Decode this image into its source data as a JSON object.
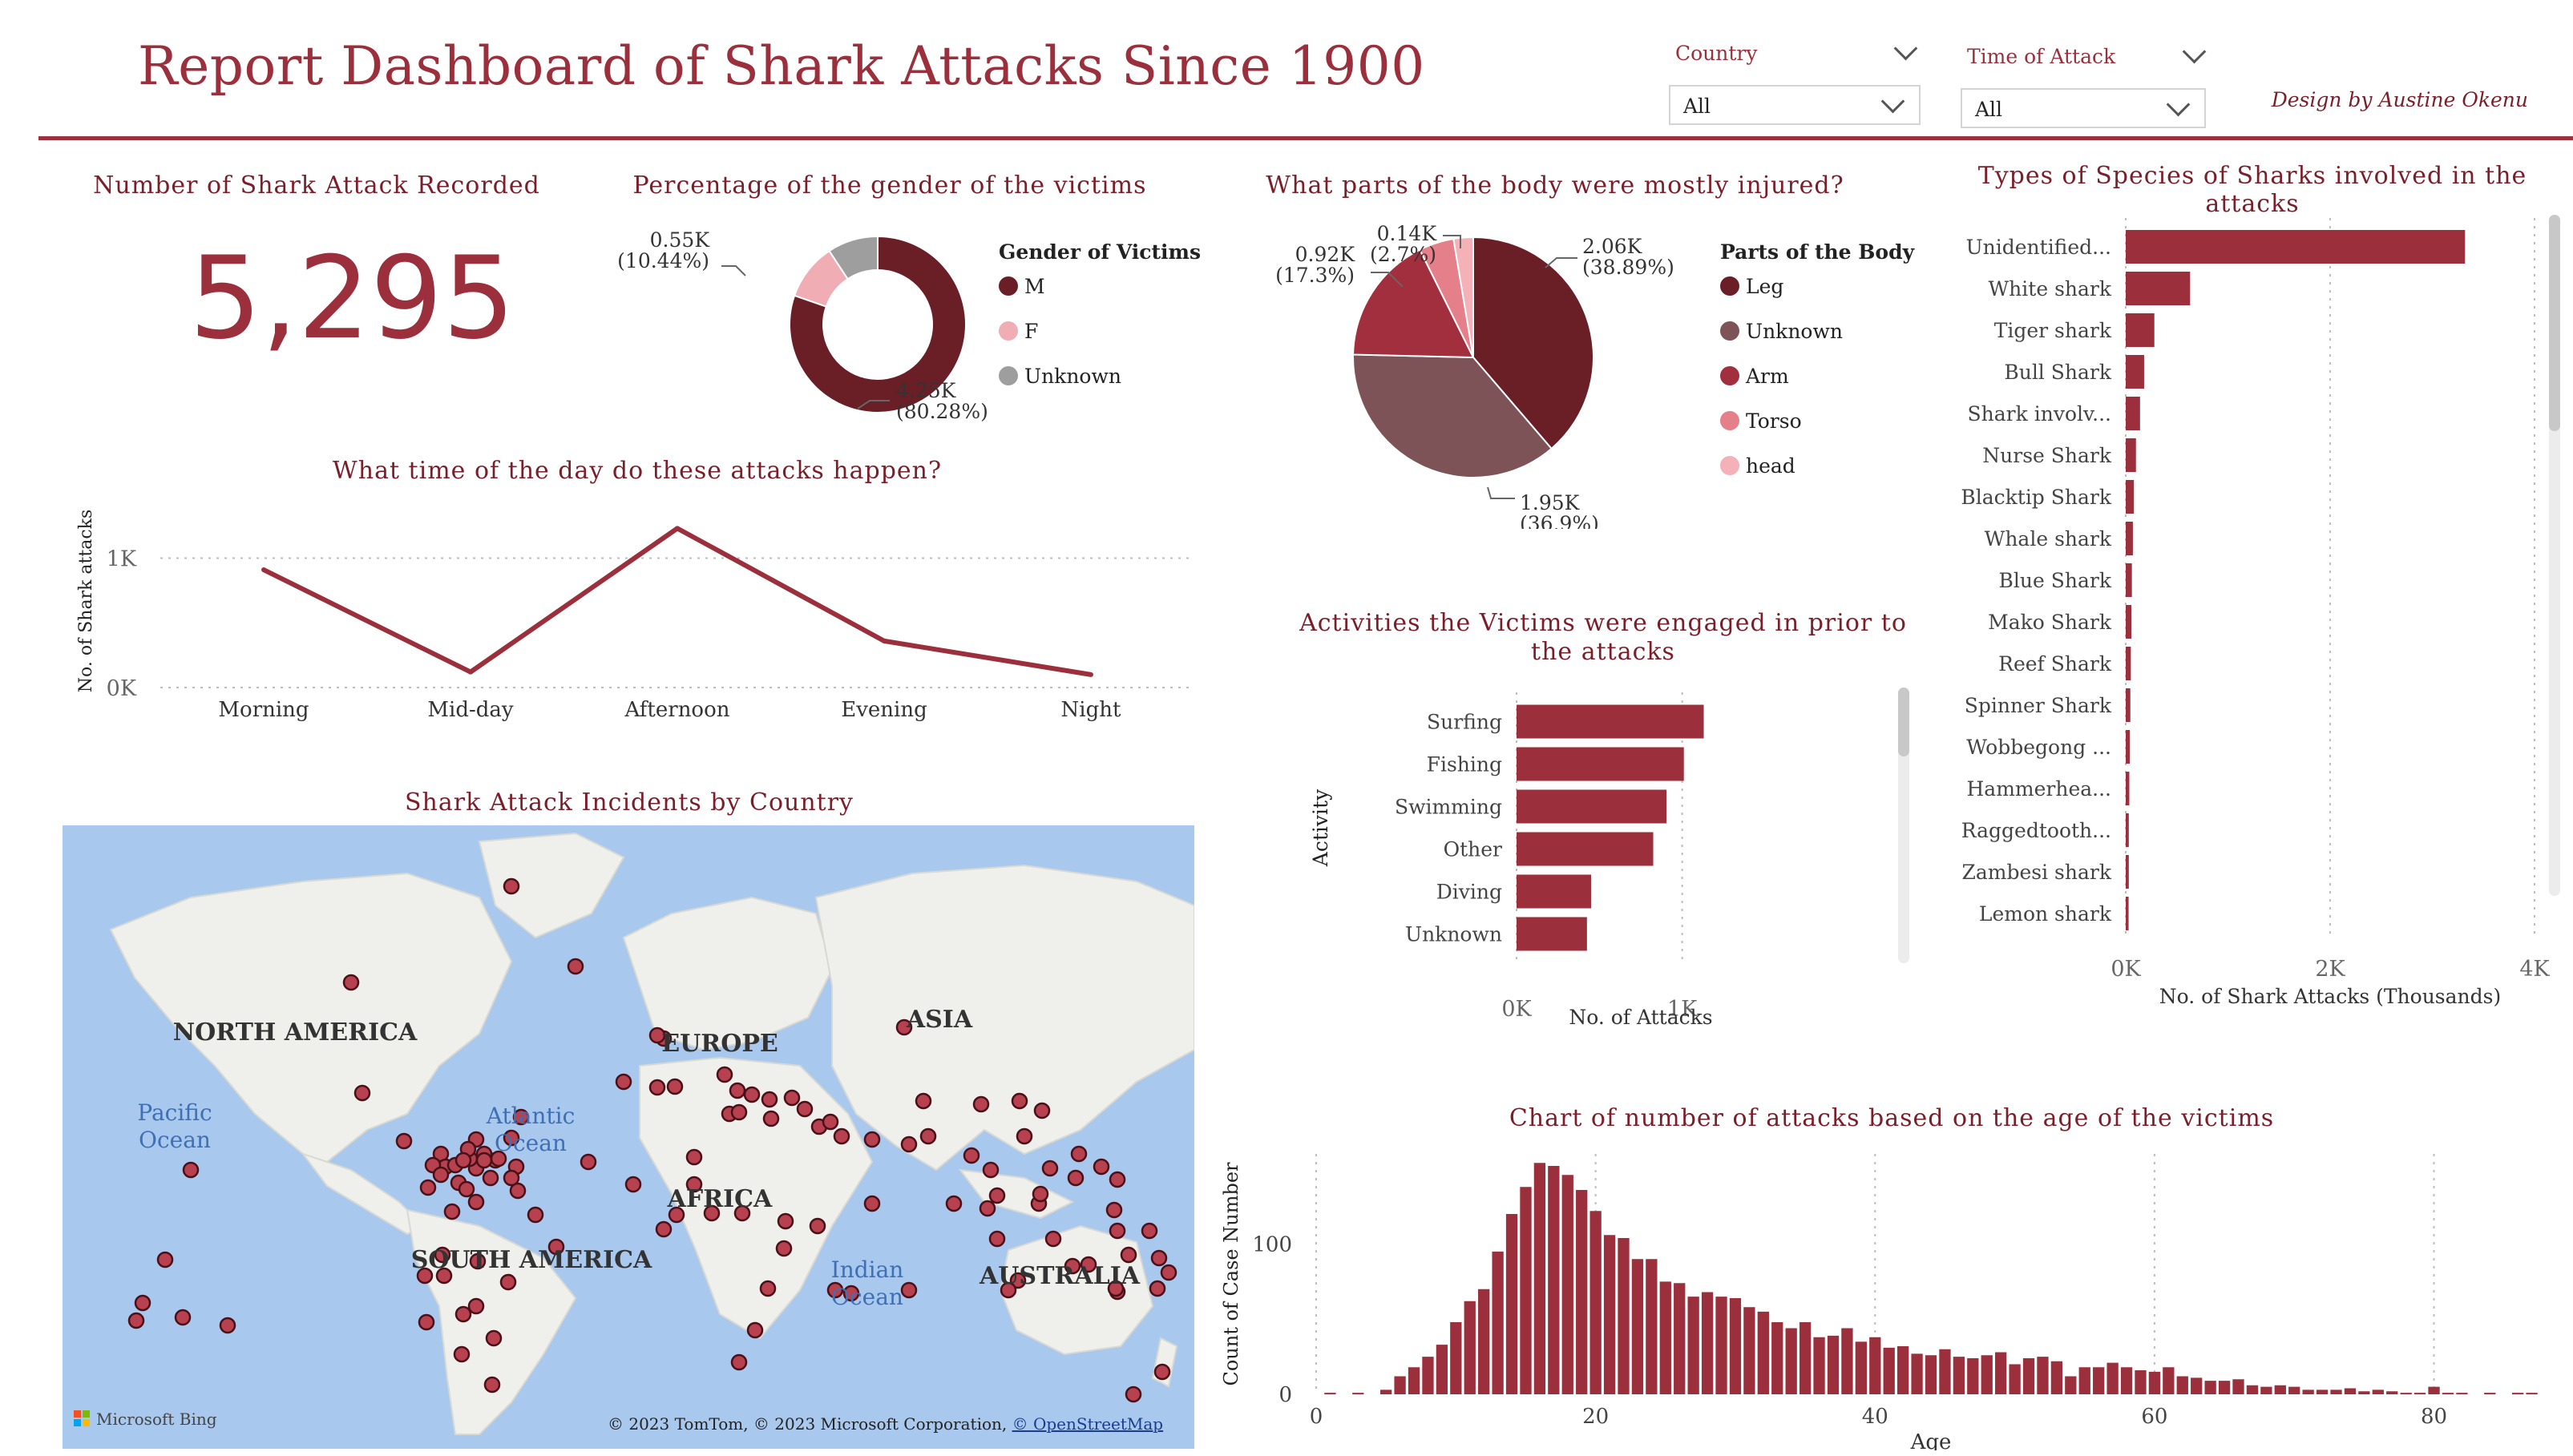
{
  "header": {
    "title": "Report Dashboard of Shark Attacks Since 1900",
    "design_credit": "Design by Austine Okenu"
  },
  "filters": {
    "country": {
      "label": "Country",
      "value": "All"
    },
    "time_of_attack": {
      "label": "Time of Attack",
      "value": "All"
    }
  },
  "kpi": {
    "title": "Number of Shark Attack Recorded",
    "value": "5,295"
  },
  "icons": {
    "slicer_chevron": "chevron-down-icon",
    "map_logo": "microsoft-bing-logo",
    "map_marker": "circle-marker-icon"
  },
  "colors": {
    "accent": "#9b2f3c",
    "title_text": "#7a1f2a",
    "grid": "#bdbdbd",
    "map_water": "#a9c8ee",
    "map_land": "#efefec",
    "marker": "#b7414e"
  },
  "map": {
    "title": "Shark Attack Incidents by Country",
    "labels": {
      "north_america": "NORTH AMERICA",
      "south_america": "SOUTH AMERICA",
      "europe": "EUROPE",
      "africa": "AFRICA",
      "asia": "ASIA",
      "australia": "AUSTRALIA",
      "pacific": "Pacific Ocean",
      "atlantic": "Atlantic Ocean",
      "indian": "Indian Ocean"
    },
    "logo_text": "Microsoft Bing",
    "copyright": "© 2023 TomTom, © 2023 Microsoft Corporation,",
    "osm_link": "© OpenStreetMap"
  },
  "chart_data": [
    {
      "id": "gender",
      "type": "pie",
      "style": "donut",
      "title": "Percentage of the gender of the victims",
      "legend_title": "Gender of Victims",
      "legend_position": "right",
      "slices": [
        {
          "name": "M",
          "value": 4250,
          "label": "4.25K",
          "pct": "(80.28%)",
          "color": "#6a1f27"
        },
        {
          "name": "F",
          "value": 550,
          "label": "0.55K",
          "pct": "(10.44%)",
          "color": "#f0aeb4"
        },
        {
          "name": "Unknown",
          "value": 490,
          "label": "",
          "pct": "",
          "color": "#9e9e9e"
        }
      ]
    },
    {
      "id": "body",
      "type": "pie",
      "title": "What parts of the body were mostly injured?",
      "legend_title": "Parts of the Body",
      "legend_position": "right",
      "slices": [
        {
          "name": "Leg",
          "value": 2060,
          "label": "2.06K",
          "pct": "(38.89%)",
          "color": "#6a1f27"
        },
        {
          "name": "Unknown",
          "value": 1950,
          "label": "1.95K",
          "pct": "(36.9%)",
          "color": "#7d5358"
        },
        {
          "name": "Arm",
          "value": 920,
          "label": "0.92K",
          "pct": "(17.3%)",
          "color": "#a12f3d"
        },
        {
          "name": "Torso",
          "value": 250,
          "label": "",
          "pct": "",
          "color": "#e57f8a"
        },
        {
          "name": "head",
          "value": 140,
          "label": "0.14K",
          "pct": "(2.7%)",
          "color": "#f4b2b8"
        }
      ]
    },
    {
      "id": "time",
      "type": "line",
      "title": "What time of the day do these attacks happen?",
      "xlabel": "",
      "ylabel": "No. of Shark attacks",
      "categories": [
        "Morning",
        "Mid-day",
        "Afternoon",
        "Evening",
        "Night"
      ],
      "values": [
        910,
        120,
        1230,
        360,
        100
      ],
      "ylim": [
        0,
        1350
      ],
      "yticks": [
        {
          "v": 0,
          "t": "0K"
        },
        {
          "v": 1000,
          "t": "1K"
        }
      ],
      "grid": true
    },
    {
      "id": "activity",
      "type": "bar",
      "orientation": "horizontal",
      "title": "Activities the Victims were engaged in prior to the attacks",
      "xlabel": "No. of Attacks",
      "ylabel": "Activity",
      "categories": [
        "Surfing",
        "Fishing",
        "Swimming",
        "Other",
        "Diving",
        "Unknown"
      ],
      "values": [
        1130,
        1010,
        905,
        825,
        450,
        425
      ],
      "xlim": [
        0,
        1500
      ],
      "xticks": [
        {
          "v": 0,
          "t": "0K"
        },
        {
          "v": 1000,
          "t": "1K"
        }
      ],
      "grid": true
    },
    {
      "id": "species",
      "type": "bar",
      "orientation": "horizontal",
      "title": "Types of Species of Sharks involved in the attacks",
      "xlabel": "No. of Shark Attacks (Thousands)",
      "ylabel": "",
      "categories": [
        "Unidentified...",
        "White shark",
        "Tiger shark",
        "Bull Shark",
        "Shark involv...",
        "Nurse Shark",
        "Blacktip Shark",
        "Whale shark",
        "Blue Shark",
        "Mako Shark",
        "Reef Shark",
        "Spinner Shark",
        "Wobbegong ...",
        "Hammerhea...",
        "Raggedtooth...",
        "Zambesi shark",
        "Lemon shark"
      ],
      "values": [
        3320,
        630,
        280,
        180,
        140,
        100,
        80,
        70,
        60,
        55,
        50,
        45,
        40,
        35,
        30,
        30,
        28
      ],
      "xlim": [
        0,
        4000
      ],
      "xticks": [
        {
          "v": 0,
          "t": "0K"
        },
        {
          "v": 2000,
          "t": "2K"
        },
        {
          "v": 4000,
          "t": "4K"
        }
      ],
      "grid": true
    },
    {
      "id": "age",
      "type": "bar",
      "title": "Chart of number of attacks based on the age of the victims",
      "xlabel": "Age",
      "ylabel": "Count of Case Number",
      "x": [
        1,
        3,
        5,
        6,
        7,
        8,
        9,
        10,
        11,
        12,
        13,
        14,
        15,
        16,
        17,
        18,
        19,
        20,
        21,
        22,
        23,
        24,
        25,
        26,
        27,
        28,
        29,
        30,
        31,
        32,
        33,
        34,
        35,
        36,
        37,
        38,
        39,
        40,
        41,
        42,
        43,
        44,
        45,
        46,
        47,
        48,
        49,
        50,
        51,
        52,
        53,
        54,
        55,
        56,
        57,
        58,
        59,
        60,
        61,
        62,
        63,
        64,
        65,
        66,
        67,
        68,
        69,
        70,
        71,
        72,
        73,
        74,
        75,
        76,
        77,
        78,
        79,
        80,
        81,
        82,
        84,
        86,
        87
      ],
      "values": [
        1,
        1,
        3,
        12,
        18,
        25,
        33,
        48,
        62,
        70,
        95,
        120,
        138,
        154,
        152,
        146,
        136,
        122,
        106,
        104,
        90,
        90,
        75,
        74,
        65,
        68,
        65,
        64,
        58,
        55,
        48,
        44,
        48,
        38,
        39,
        44,
        35,
        38,
        31,
        32,
        27,
        26,
        30,
        25,
        24,
        26,
        28,
        20,
        24,
        25,
        22,
        12,
        18,
        18,
        21,
        18,
        16,
        15,
        18,
        12,
        11,
        9,
        9,
        10,
        6,
        5,
        6,
        5,
        3,
        3,
        3,
        4,
        2,
        3,
        2,
        1,
        1,
        5,
        1,
        1,
        1,
        1,
        1
      ],
      "xlim": [
        0,
        88
      ],
      "ylim": [
        0,
        160
      ],
      "xticks": [
        0,
        20,
        40,
        60,
        80
      ],
      "yticks": [
        0,
        100
      ],
      "grid": true
    }
  ]
}
